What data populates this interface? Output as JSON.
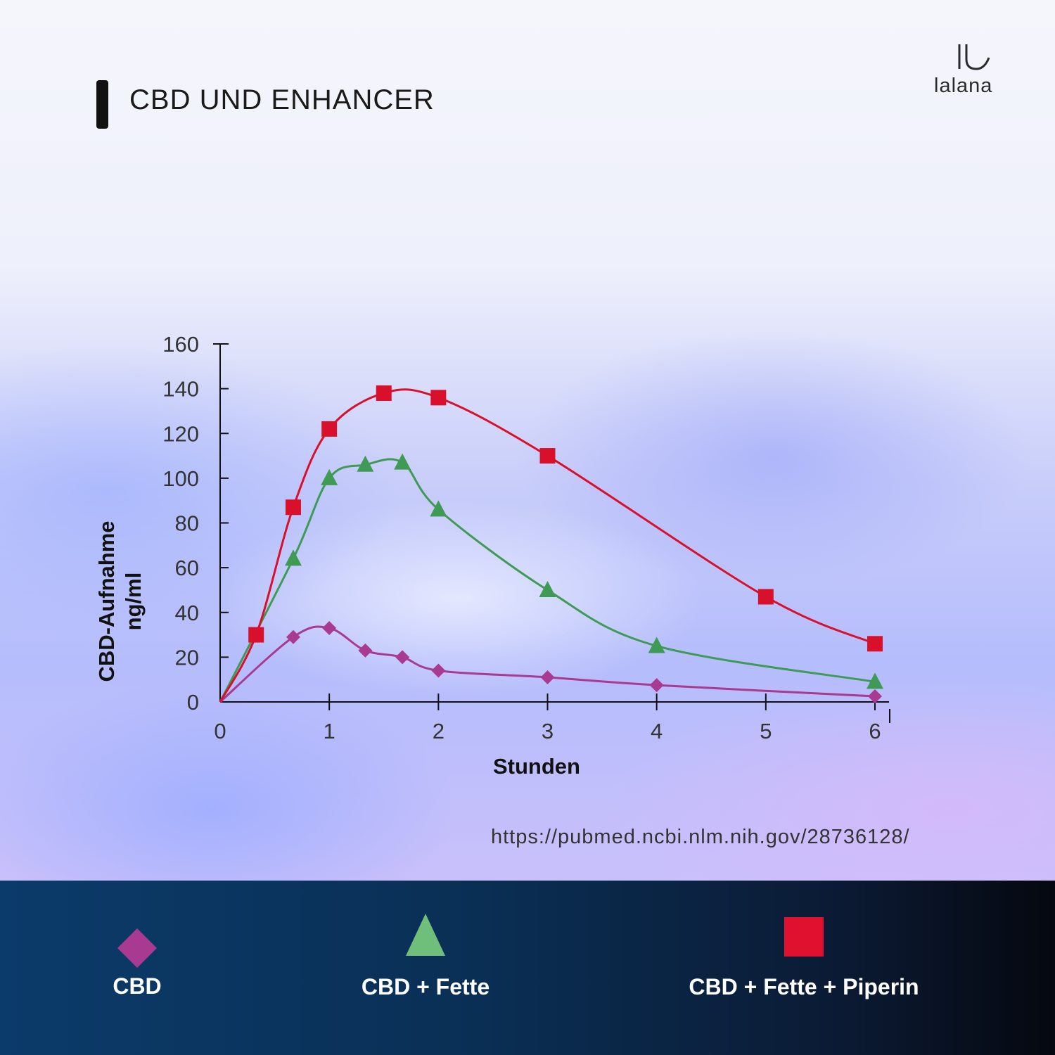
{
  "header": {
    "title": "CBD UND ENHANCER",
    "brand": "lalana"
  },
  "source": "https://pubmed.ncbi.nlm.nih.gov/28736128/",
  "legend": [
    {
      "label": "CBD",
      "color": "#a93a92",
      "icon": "diamond-icon"
    },
    {
      "label": "CBD + Fette",
      "color": "#6fbf7a",
      "icon": "triangle-icon"
    },
    {
      "label": "CBD + Fette + Piperin",
      "color": "#e0112f",
      "icon": "square-icon"
    }
  ],
  "chart_data": {
    "type": "line",
    "xlabel": "Stunden",
    "ylabel": [
      "CBD-Aufnahme",
      "ng/ml"
    ],
    "xlim": [
      0,
      6
    ],
    "ylim": [
      0,
      160
    ],
    "xticks": [
      0,
      1,
      2,
      3,
      4,
      5,
      6
    ],
    "yticks": [
      0,
      20,
      40,
      60,
      80,
      100,
      120,
      140,
      160
    ],
    "grid": false,
    "legend_position": "bottom",
    "series": [
      {
        "label": "CBD",
        "color": "#a93a92",
        "marker": "diamond",
        "points": [
          [
            0.67,
            29
          ],
          [
            1.0,
            33
          ],
          [
            1.33,
            23
          ],
          [
            1.67,
            20
          ],
          [
            2.0,
            14
          ],
          [
            3.0,
            11
          ],
          [
            4.0,
            7.5
          ],
          [
            6.0,
            2.5
          ]
        ]
      },
      {
        "label": "CBD + Fette",
        "color": "#3f9a55",
        "marker": "triangle",
        "points": [
          [
            0.67,
            64
          ],
          [
            1.0,
            100
          ],
          [
            1.33,
            106
          ],
          [
            1.67,
            107
          ],
          [
            2.0,
            86
          ],
          [
            3.0,
            50
          ],
          [
            4.0,
            25
          ],
          [
            6.0,
            9
          ]
        ]
      },
      {
        "label": "CBD + Fette + Piperin",
        "color": "#d8102c",
        "marker": "square",
        "points": [
          [
            0.33,
            30
          ],
          [
            0.67,
            87
          ],
          [
            1.0,
            122
          ],
          [
            1.5,
            138
          ],
          [
            2.0,
            136
          ],
          [
            3.0,
            110
          ],
          [
            5.0,
            47
          ],
          [
            6.0,
            26
          ]
        ]
      }
    ]
  }
}
